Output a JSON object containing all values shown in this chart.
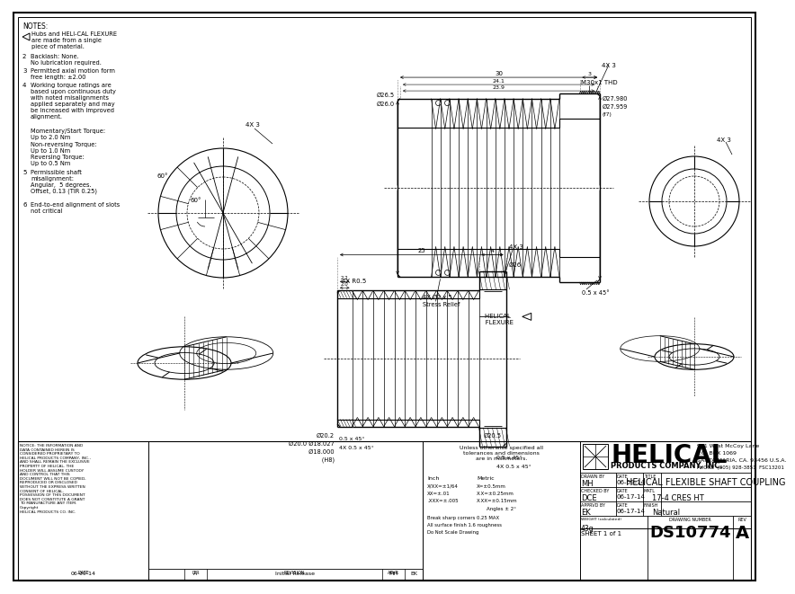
{
  "bg_color": "#ffffff",
  "line_color": "#000000",
  "title": "HELICAL FLEXIBLE SHAFT COUPLING",
  "drawing_number": "DS10774",
  "rev": "A",
  "sheet": "SHEET 1 of 1",
  "company_name": "HELICAL",
  "company_sub": "PRODUCTS COMPANY, INC.",
  "company_addr1": "901 West McCoy Lane",
  "company_addr2": "P.O. BOX 1069",
  "company_addr3": "SANTA MARIA, CA. 93456 U.S.A.",
  "company_addr4": "PHONE  (805) 928-3851  FSC13201",
  "drawn_by": "MH",
  "drawn_date": "06-09-14",
  "checked_by": "DCE",
  "checked_date": "06-17-14",
  "approved_by": "EK",
  "approved_date": "06-17-14",
  "material": "17-4 CRES HT",
  "finish": "Natural",
  "weight": "43g"
}
